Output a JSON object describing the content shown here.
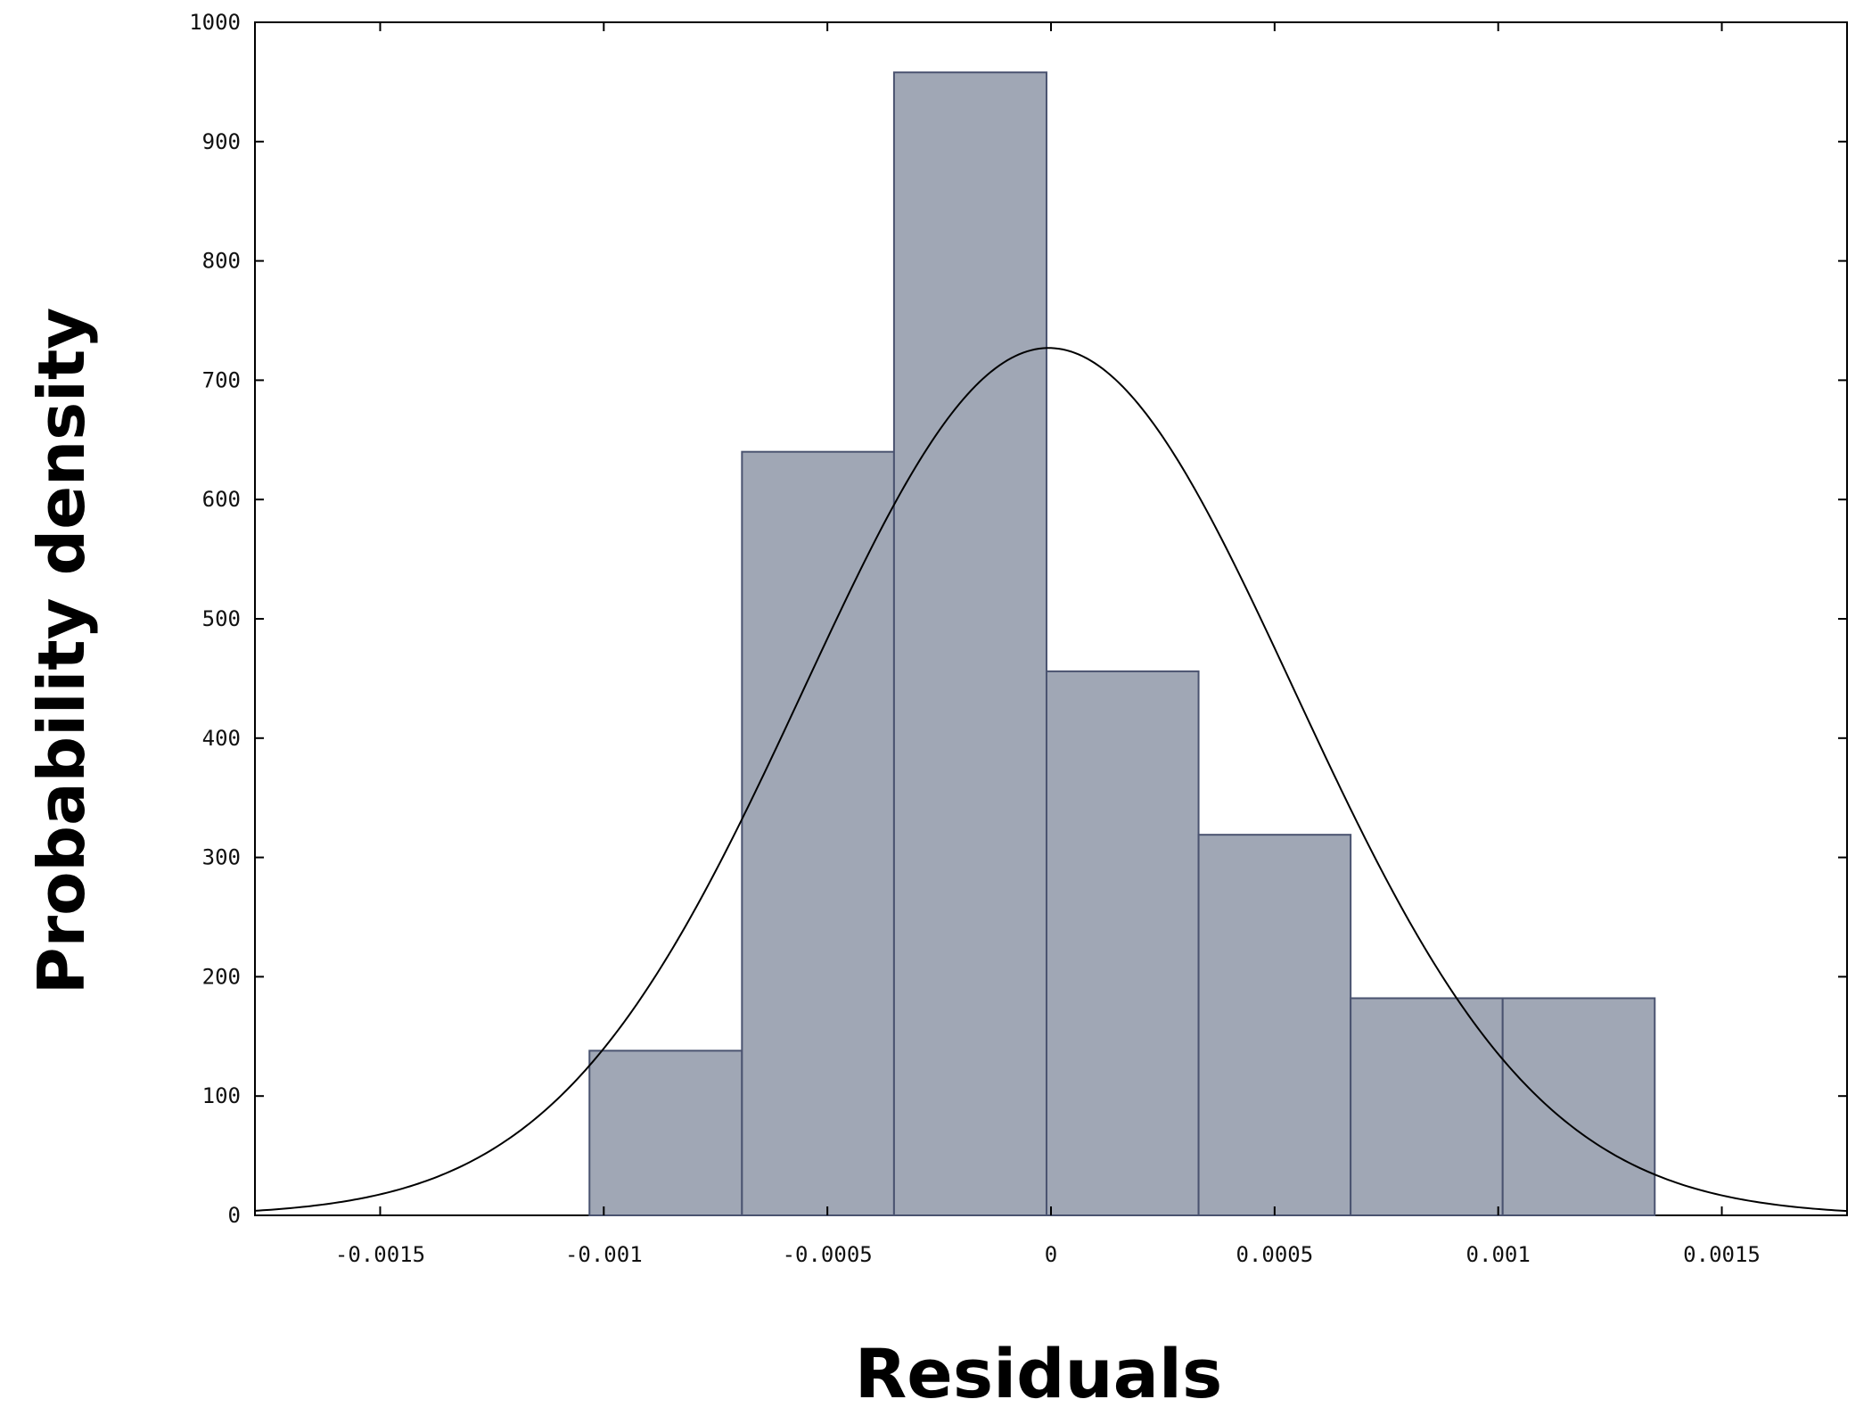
{
  "chart_data": {
    "type": "bar",
    "subtype": "histogram-with-normal-fit",
    "title": "",
    "xlabel": "Residuals",
    "ylabel": "Probability density",
    "xlim": [
      -0.00178,
      0.00178
    ],
    "ylim": [
      0,
      1000
    ],
    "grid": false,
    "legend": "none",
    "bar_color": "#a0a7b5",
    "bar_edge_color": "#4a5370",
    "curve_color": "#000000",
    "x_ticks": [
      {
        "value": -0.0015,
        "label": "-0.0015"
      },
      {
        "value": -0.001,
        "label": "-0.001"
      },
      {
        "value": -0.0005,
        "label": "-0.0005"
      },
      {
        "value": 0,
        "label": "0"
      },
      {
        "value": 0.0005,
        "label": "0.0005"
      },
      {
        "value": 0.001,
        "label": "0.001"
      },
      {
        "value": 0.0015,
        "label": "0.0015"
      }
    ],
    "y_ticks": [
      {
        "value": 0,
        "label": "0"
      },
      {
        "value": 100,
        "label": "100"
      },
      {
        "value": 200,
        "label": "200"
      },
      {
        "value": 300,
        "label": "300"
      },
      {
        "value": 400,
        "label": "400"
      },
      {
        "value": 500,
        "label": "500"
      },
      {
        "value": 600,
        "label": "600"
      },
      {
        "value": 700,
        "label": "700"
      },
      {
        "value": 800,
        "label": "800"
      },
      {
        "value": 900,
        "label": "900"
      },
      {
        "value": 1000,
        "label": "1000"
      }
    ],
    "bins": [
      {
        "x0": -0.001032,
        "x1": -0.000691,
        "value": 138
      },
      {
        "x0": -0.000691,
        "x1": -0.000351,
        "value": 640
      },
      {
        "x0": -0.000351,
        "x1": -1e-05,
        "value": 958
      },
      {
        "x0": -1e-05,
        "x1": 0.00033,
        "value": 456
      },
      {
        "x0": 0.00033,
        "x1": 0.00067,
        "value": 319
      },
      {
        "x0": 0.00067,
        "x1": 0.00101,
        "value": 182
      },
      {
        "x0": 0.00101,
        "x1": 0.00135,
        "value": 182
      }
    ],
    "normal_curve": {
      "mean": -5e-06,
      "sd": 0.000548,
      "peak": 727
    }
  }
}
